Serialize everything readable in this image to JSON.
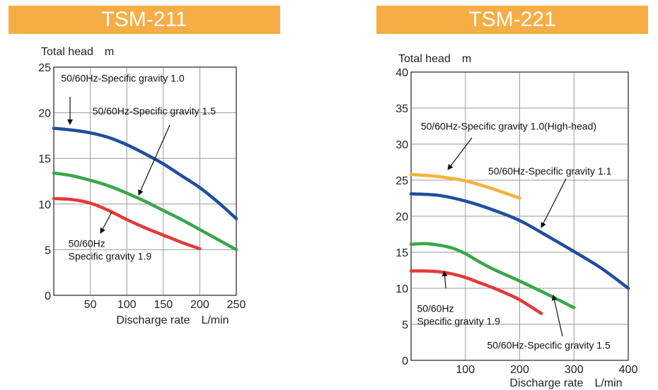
{
  "chart_data": [
    {
      "type": "line",
      "title": "TSM-211",
      "ylabel": "Total head　m",
      "xlabel": "Discharge rate　L/min",
      "xlim": [
        0,
        250
      ],
      "ylim": [
        0,
        25
      ],
      "x_ticks": [
        50,
        100,
        150,
        200,
        250
      ],
      "y_ticks": [
        0,
        5,
        10,
        15,
        20,
        25
      ],
      "grid": true,
      "series": [
        {
          "color": "#1f4e9c",
          "x": [
            0,
            25,
            50,
            75,
            100,
            125,
            150,
            175,
            200,
            225,
            250
          ],
          "y": [
            18.3,
            18.1,
            17.8,
            17.3,
            16.5,
            15.5,
            14.4,
            13.1,
            11.8,
            10.2,
            8.4
          ]
        },
        {
          "color": "#3aa64a",
          "x": [
            0,
            25,
            50,
            75,
            100,
            125,
            150,
            175,
            200,
            225,
            250
          ],
          "y": [
            13.4,
            13.1,
            12.6,
            12.0,
            11.2,
            10.3,
            9.3,
            8.3,
            7.2,
            6.1,
            5.0
          ]
        },
        {
          "color": "#e23a3a",
          "x": [
            0,
            25,
            50,
            75,
            100,
            125,
            150,
            175,
            200
          ],
          "y": [
            10.6,
            10.5,
            10.1,
            9.3,
            8.3,
            7.4,
            6.6,
            5.8,
            5.1
          ]
        }
      ],
      "annotations": [
        {
          "lines": [
            "50/60Hz-Specific gravity 1.0"
          ],
          "x": 10,
          "y": 23.4
        },
        {
          "lines": [
            "50/60Hz-Specific gravity 1.5"
          ],
          "x": 53,
          "y": 19.8
        },
        {
          "lines": [
            "50/60Hz",
            "Specific gravity 1.9"
          ],
          "x": 20,
          "y": 5.3
        }
      ]
    },
    {
      "type": "line",
      "title": "TSM-221",
      "ylabel": "Total head　m",
      "xlabel": "Discharge rate　L/min",
      "xlim": [
        0,
        400
      ],
      "ylim": [
        0,
        40
      ],
      "x_ticks": [
        100,
        200,
        300,
        400
      ],
      "y_ticks": [
        0,
        5,
        10,
        15,
        20,
        25,
        30,
        35,
        40
      ],
      "grid": true,
      "series": [
        {
          "color": "#f3b33d",
          "x": [
            0,
            50,
            100,
            150,
            200
          ],
          "y": [
            25.8,
            25.5,
            24.9,
            23.8,
            22.5
          ]
        },
        {
          "color": "#1f4e9c",
          "x": [
            0,
            50,
            100,
            150,
            200,
            250,
            300,
            350,
            400
          ],
          "y": [
            23.1,
            22.9,
            22.1,
            20.9,
            19.4,
            17.3,
            15.1,
            12.8,
            10.0
          ]
        },
        {
          "color": "#3aa64a",
          "x": [
            0,
            25,
            50,
            75,
            100,
            125,
            150,
            200,
            250,
            300
          ],
          "y": [
            16.1,
            16.2,
            16.0,
            15.6,
            14.8,
            13.7,
            12.7,
            11.0,
            9.2,
            7.3
          ]
        },
        {
          "color": "#e23a3a",
          "x": [
            0,
            25,
            50,
            75,
            100,
            125,
            150,
            175,
            200,
            240
          ],
          "y": [
            12.4,
            12.4,
            12.3,
            12.0,
            11.5,
            10.8,
            10.1,
            9.3,
            8.4,
            6.5
          ]
        }
      ],
      "annotations": [
        {
          "lines": [
            "50/60Hz-Specific gravity 1.0(High-head)"
          ],
          "x": 18,
          "y": 32.0
        },
        {
          "lines": [
            "50/60Hz-Specific gravity 1.1"
          ],
          "x": 142,
          "y": 25.8
        },
        {
          "lines": [
            "50/60Hz",
            "Specific gravity 1.9"
          ],
          "x": 11,
          "y": 6.7
        },
        {
          "lines": [
            "50/60Hz-Specific gravity 1.5"
          ],
          "x": 140,
          "y": 1.6
        }
      ]
    }
  ]
}
